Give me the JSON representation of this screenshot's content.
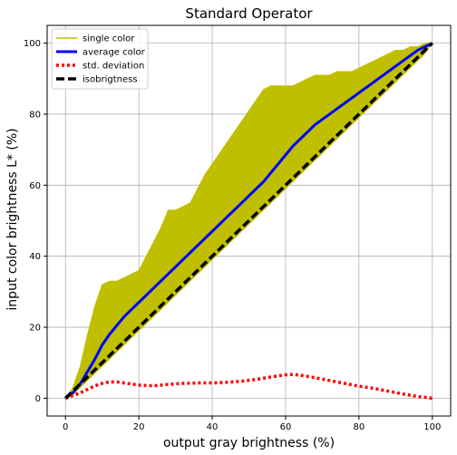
{
  "chart_data": {
    "type": "line",
    "title": "Standard Operator",
    "xlabel": "output gray brightness (%)",
    "ylabel": "input color brightness L* (%)",
    "xlim": [
      -5,
      105
    ],
    "ylim": [
      -5,
      105
    ],
    "xticks": [
      0,
      20,
      40,
      60,
      80,
      100
    ],
    "yticks": [
      0,
      20,
      40,
      60,
      80,
      100
    ],
    "grid": true,
    "legend_position": "top-left",
    "series": [
      {
        "name": "single color",
        "kind": "band",
        "color": "#bfbf00",
        "x": [
          0,
          2,
          4,
          6,
          8,
          10,
          12,
          14,
          16,
          18,
          20,
          22,
          24,
          26,
          28,
          30,
          32,
          34,
          36,
          38,
          40,
          42,
          44,
          46,
          48,
          50,
          52,
          54,
          56,
          58,
          60,
          62,
          64,
          66,
          68,
          70,
          72,
          74,
          76,
          78,
          80,
          82,
          84,
          86,
          88,
          90,
          92,
          94,
          96,
          98,
          100
        ],
        "upper": [
          0,
          3,
          9,
          18,
          26,
          32,
          33,
          33,
          34,
          35,
          36,
          40,
          44,
          48,
          53,
          53,
          54,
          55,
          59,
          63,
          66,
          69,
          72,
          75,
          78,
          81,
          84,
          87,
          88,
          88,
          88,
          88,
          89,
          90,
          91,
          91,
          91,
          92,
          92,
          92,
          93,
          94,
          95,
          96,
          97,
          98,
          98,
          99,
          99,
          100,
          100
        ],
        "lower": [
          0,
          1,
          3,
          5,
          7,
          9,
          11,
          13,
          15,
          17,
          19,
          21,
          23,
          25,
          27,
          29,
          31,
          33,
          35,
          37,
          39,
          41,
          43,
          45,
          47,
          49,
          51,
          53,
          55,
          57,
          59,
          61,
          63,
          65,
          67,
          69,
          71,
          73,
          75,
          77,
          79,
          81,
          83,
          85,
          87,
          89,
          91,
          93,
          95,
          97,
          100
        ]
      },
      {
        "name": "average color",
        "kind": "line",
        "style": "solid",
        "color": "#0000ff",
        "x": [
          0,
          2,
          4,
          6,
          8,
          10,
          12,
          14,
          16,
          18,
          20,
          22,
          24,
          26,
          28,
          30,
          32,
          34,
          36,
          38,
          40,
          42,
          44,
          46,
          48,
          50,
          52,
          54,
          56,
          58,
          60,
          62,
          64,
          66,
          68,
          70,
          72,
          74,
          76,
          78,
          80,
          82,
          84,
          86,
          88,
          90,
          92,
          94,
          96,
          98,
          100
        ],
        "values": [
          0,
          1.5,
          4,
          7.5,
          11,
          15,
          18,
          20.5,
          23,
          25,
          27,
          29,
          31,
          33,
          35,
          37,
          39,
          41,
          43,
          45,
          47,
          49,
          51,
          53,
          55,
          57,
          59,
          61,
          63.5,
          66,
          68.5,
          71,
          73,
          75,
          77,
          78.5,
          80,
          81.5,
          83,
          84.5,
          86,
          87.5,
          89,
          90.5,
          92,
          93.5,
          95,
          96.5,
          98,
          99,
          100
        ]
      },
      {
        "name": "std. deviation",
        "kind": "line",
        "style": "dotted",
        "color": "#ff0000",
        "x": [
          0,
          4,
          8,
          10,
          12,
          14,
          16,
          18,
          20,
          24,
          28,
          32,
          36,
          40,
          44,
          48,
          52,
          56,
          60,
          62,
          64,
          68,
          72,
          76,
          80,
          84,
          88,
          92,
          96,
          100
        ],
        "values": [
          0,
          1.5,
          3.5,
          4.2,
          4.6,
          4.6,
          4.3,
          4.0,
          3.7,
          3.5,
          3.9,
          4.2,
          4.3,
          4.3,
          4.5,
          4.8,
          5.3,
          6.0,
          6.6,
          6.7,
          6.5,
          5.8,
          5.0,
          4.2,
          3.4,
          2.8,
          2.0,
          1.2,
          0.5,
          0
        ]
      },
      {
        "name": "isobrigtness",
        "kind": "line",
        "style": "dashed",
        "color": "#000000",
        "x": [
          0,
          100
        ],
        "values": [
          0,
          100
        ]
      }
    ]
  }
}
